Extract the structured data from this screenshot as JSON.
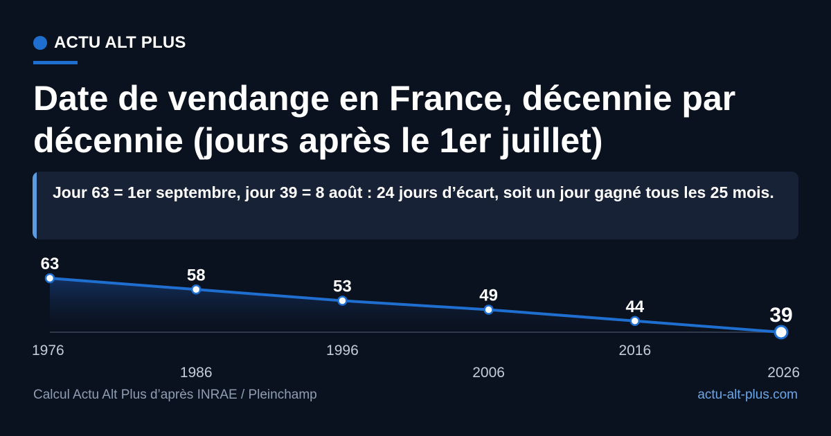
{
  "brand": {
    "name": "ACTU ALT PLUS"
  },
  "headline": "Date de vendange en France, décennie par décennie (jours après le 1er juillet)",
  "callout": "Jour 63 = 1er septembre, jour 39 = 8 août : 24 jours d’écart, soit un jour gagné tous les 25 mois.",
  "footer": {
    "source": "Calcul Actu Alt Plus d’après INRAE / Pleinchamp",
    "url": "actu-alt-plus.com"
  },
  "colors": {
    "accent": "#1f6fd1",
    "background": "#0b121f",
    "callout_bg": "#172236"
  },
  "chart_data": {
    "type": "area",
    "x": [
      "1976",
      "1986",
      "1996",
      "2006",
      "2016",
      "2026"
    ],
    "values": [
      63,
      58,
      53,
      49,
      44,
      39
    ],
    "data_labels": [
      "63",
      "58",
      "53",
      "49",
      "44",
      "39"
    ],
    "highlight_last": true,
    "grid": false,
    "legend": "none"
  }
}
